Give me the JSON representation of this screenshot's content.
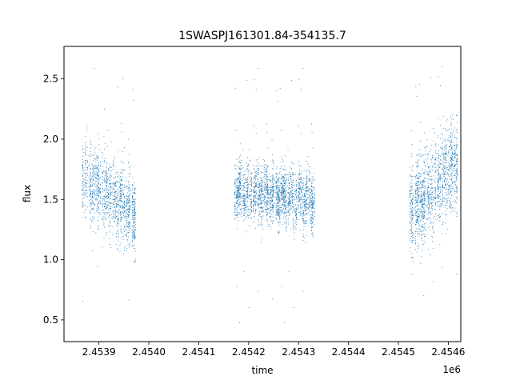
{
  "chart_data": {
    "type": "scatter",
    "title": "1SWASPJ161301.84-354135.7",
    "xlabel": "time",
    "ylabel": "flux",
    "x_offset_label": "1e6",
    "x_ticks": [
      2.4539,
      2.454,
      2.4541,
      2.4542,
      2.4543,
      2.4544,
      2.4545,
      2.4546
    ],
    "x_tick_labels": [
      "2.4539",
      "2.4540",
      "2.4541",
      "2.4542",
      "2.4543",
      "2.4544",
      "2.4545",
      "2.4546"
    ],
    "y_ticks": [
      0.5,
      1.0,
      1.5,
      2.0,
      2.5
    ],
    "y_tick_labels": [
      "0.5",
      "1.0",
      "1.5",
      "2.0",
      "2.5"
    ],
    "xlim": [
      2453830,
      2454625
    ],
    "ylim": [
      0.32,
      2.77
    ],
    "grid": false,
    "legend": "none",
    "marker_color": "#1f77b4",
    "series": [
      {
        "segments": [
          {
            "x_start": 2453865,
            "x_end": 2453972,
            "y_start": 1.72,
            "y_end": 1.38,
            "spread": 0.16,
            "outlier_min": 0.43,
            "outlier_max": 2.65
          },
          {
            "x_start": 2454171,
            "x_end": 2454331,
            "y_start": 1.58,
            "y_end": 1.5,
            "spread": 0.12,
            "outlier_min": 0.44,
            "outlier_max": 2.64
          },
          {
            "x_start": 2454521,
            "x_end": 2454617,
            "y_start": 1.4,
            "y_end": 1.82,
            "spread": 0.19,
            "outlier_min": 0.67,
            "outlier_max": 2.65
          }
        ]
      }
    ]
  }
}
